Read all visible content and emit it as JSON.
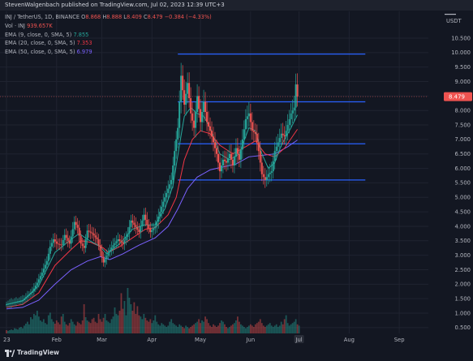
{
  "header": {
    "publisher": "StevenWalgenbach published on TradingView.com, Jul 02, 2023 12:39 UTC+3"
  },
  "legend": {
    "symbol": "INJ / TetherUS, 1D, BINANCE",
    "open_label": "O",
    "open": "8.868",
    "high_label": "H",
    "high": "8.888",
    "low_label": "L",
    "low": "8.409",
    "close_label": "C",
    "close": "8.479",
    "change": "−0.384 (−4.33%)",
    "vol_label": "Vol · INJ",
    "vol": "939.657K",
    "ema9_label": "EMA (9, close, 0, SMA, 5)",
    "ema9": "7.855",
    "ema20_label": "EMA (20, close, 0, SMA, 5)",
    "ema20": "7.353",
    "ema50_label": "EMA (50, close, 0, SMA, 5)",
    "ema50": "6.979"
  },
  "footer": {
    "brand": "TradingView"
  },
  "colors": {
    "up": "#26a69a",
    "down": "#ef5350",
    "level_line": "#2962ff",
    "ema9": "#26a69a",
    "ema20": "#f23645",
    "ema50": "#7b61ff",
    "price_badge": "#ef5350"
  },
  "chart_data": {
    "type": "candlestick",
    "currency_label": "USDT",
    "price_badge": "8.479",
    "y_ticks": [
      "10.500",
      "10.000",
      "9.500",
      "9.000",
      "8.500",
      "8.000",
      "7.500",
      "7.000",
      "6.500",
      "6.000",
      "5.500",
      "5.000",
      "4.500",
      "4.000",
      "3.500",
      "3.000",
      "2.500",
      "2.000",
      "1.500",
      "1.000",
      "0.500"
    ],
    "ylim": [
      0.3,
      11.2
    ],
    "x_ticks": [
      "23",
      "Feb",
      "Mar",
      "Apr",
      "May",
      "Jun",
      "Jul",
      "Aug",
      "Sep"
    ],
    "x_tick_days": [
      0,
      31,
      59,
      90,
      120,
      151,
      181,
      212,
      243
    ],
    "highlighted_x_tick": "Jul",
    "horizontal_levels": [
      {
        "price": 9.95,
        "from_day": 106,
        "to_day": 222
      },
      {
        "price": 8.3,
        "from_day": 106,
        "to_day": 222
      },
      {
        "price": 6.85,
        "from_day": 106,
        "to_day": 222
      },
      {
        "price": 5.6,
        "from_day": 106,
        "to_day": 222
      }
    ],
    "close_series": [
      [
        0,
        1.3
      ],
      [
        5,
        1.38
      ],
      [
        10,
        1.45
      ],
      [
        13,
        1.6
      ],
      [
        16,
        1.75
      ],
      [
        19,
        2.05
      ],
      [
        22,
        2.4
      ],
      [
        25,
        2.8
      ],
      [
        27,
        3.3
      ],
      [
        29,
        3.55
      ],
      [
        31,
        3.4
      ],
      [
        34,
        3.35
      ],
      [
        36,
        3.7
      ],
      [
        39,
        3.4
      ],
      [
        42,
        4.15
      ],
      [
        44,
        3.95
      ],
      [
        46,
        3.4
      ],
      [
        48,
        3.25
      ],
      [
        50,
        3.85
      ],
      [
        53,
        3.75
      ],
      [
        56,
        3.55
      ],
      [
        58,
        3.15
      ],
      [
        60,
        2.75
      ],
      [
        63,
        3.1
      ],
      [
        66,
        3.35
      ],
      [
        69,
        3.55
      ],
      [
        72,
        3.4
      ],
      [
        75,
        3.75
      ],
      [
        77,
        4.2
      ],
      [
        79,
        4.05
      ],
      [
        82,
        3.8
      ],
      [
        85,
        4.4
      ],
      [
        87,
        4.05
      ],
      [
        89,
        3.8
      ],
      [
        92,
        4.0
      ],
      [
        95,
        4.5
      ],
      [
        97,
        4.85
      ],
      [
        100,
        5.3
      ],
      [
        102,
        5.6
      ],
      [
        104,
        6.6
      ],
      [
        106,
        7.4
      ],
      [
        108,
        9.2
      ],
      [
        110,
        8.2
      ],
      [
        112,
        8.95
      ],
      [
        114,
        7.9
      ],
      [
        116,
        7.4
      ],
      [
        118,
        8.5
      ],
      [
        120,
        7.6
      ],
      [
        122,
        8.3
      ],
      [
        124,
        7.6
      ],
      [
        126,
        7.3
      ],
      [
        128,
        6.9
      ],
      [
        130,
        6.5
      ],
      [
        132,
        5.9
      ],
      [
        134,
        6.3
      ],
      [
        136,
        6.2
      ],
      [
        138,
        6.5
      ],
      [
        140,
        6.1
      ],
      [
        142,
        6.7
      ],
      [
        144,
        6.3
      ],
      [
        146,
        7.0
      ],
      [
        148,
        7.7
      ],
      [
        150,
        7.9
      ],
      [
        152,
        7.3
      ],
      [
        154,
        7.2
      ],
      [
        156,
        6.6
      ],
      [
        158,
        5.8
      ],
      [
        160,
        5.6
      ],
      [
        162,
        5.8
      ],
      [
        164,
        5.9
      ],
      [
        166,
        6.6
      ],
      [
        168,
        6.9
      ],
      [
        170,
        7.2
      ],
      [
        172,
        7.1
      ],
      [
        174,
        7.5
      ],
      [
        176,
        7.9
      ],
      [
        178,
        8.1
      ],
      [
        179,
        8.9
      ],
      [
        180,
        8.48
      ]
    ],
    "ema9": [
      [
        0,
        1.3
      ],
      [
        10,
        1.42
      ],
      [
        20,
        1.95
      ],
      [
        30,
        3.1
      ],
      [
        40,
        3.55
      ],
      [
        45,
        3.75
      ],
      [
        50,
        3.55
      ],
      [
        58,
        3.3
      ],
      [
        62,
        3.05
      ],
      [
        70,
        3.4
      ],
      [
        78,
        3.9
      ],
      [
        85,
        4.05
      ],
      [
        92,
        4.05
      ],
      [
        98,
        4.6
      ],
      [
        103,
        5.4
      ],
      [
        107,
        6.8
      ],
      [
        110,
        7.8
      ],
      [
        114,
        8.1
      ],
      [
        118,
        7.9
      ],
      [
        122,
        7.8
      ],
      [
        126,
        7.4
      ],
      [
        132,
        6.5
      ],
      [
        138,
        6.3
      ],
      [
        144,
        6.5
      ],
      [
        150,
        7.4
      ],
      [
        154,
        7.3
      ],
      [
        158,
        6.5
      ],
      [
        162,
        6.0
      ],
      [
        166,
        6.2
      ],
      [
        170,
        6.8
      ],
      [
        176,
        7.4
      ],
      [
        180,
        7.85
      ]
    ],
    "ema20": [
      [
        0,
        1.2
      ],
      [
        10,
        1.3
      ],
      [
        20,
        1.7
      ],
      [
        30,
        2.65
      ],
      [
        40,
        3.2
      ],
      [
        46,
        3.5
      ],
      [
        52,
        3.45
      ],
      [
        60,
        3.25
      ],
      [
        63,
        3.1
      ],
      [
        70,
        3.3
      ],
      [
        78,
        3.6
      ],
      [
        86,
        3.9
      ],
      [
        92,
        3.95
      ],
      [
        100,
        4.4
      ],
      [
        105,
        5.0
      ],
      [
        110,
        6.3
      ],
      [
        115,
        7.0
      ],
      [
        120,
        7.3
      ],
      [
        126,
        7.2
      ],
      [
        132,
        6.8
      ],
      [
        140,
        6.5
      ],
      [
        148,
        6.75
      ],
      [
        154,
        6.95
      ],
      [
        160,
        6.5
      ],
      [
        166,
        6.4
      ],
      [
        172,
        6.7
      ],
      [
        180,
        7.35
      ]
    ],
    "ema50": [
      [
        0,
        1.15
      ],
      [
        10,
        1.2
      ],
      [
        20,
        1.45
      ],
      [
        30,
        2.0
      ],
      [
        40,
        2.5
      ],
      [
        50,
        2.8
      ],
      [
        58,
        2.95
      ],
      [
        64,
        2.85
      ],
      [
        72,
        3.05
      ],
      [
        82,
        3.35
      ],
      [
        92,
        3.6
      ],
      [
        100,
        4.0
      ],
      [
        106,
        4.6
      ],
      [
        112,
        5.3
      ],
      [
        118,
        5.7
      ],
      [
        126,
        5.95
      ],
      [
        134,
        6.05
      ],
      [
        142,
        6.15
      ],
      [
        150,
        6.4
      ],
      [
        158,
        6.45
      ],
      [
        166,
        6.5
      ],
      [
        174,
        6.75
      ],
      [
        180,
        6.98
      ]
    ],
    "volume_relative": [
      0.05,
      0.04,
      0.05,
      0.06,
      0.05,
      0.08,
      0.07,
      0.06,
      0.09,
      0.1,
      0.08,
      0.12,
      0.15,
      0.18,
      0.14,
      0.25,
      0.22,
      0.3,
      0.28,
      0.35,
      0.26,
      0.2,
      0.18,
      0.22,
      0.16,
      0.14,
      0.28,
      0.32,
      0.22,
      0.18,
      0.15,
      0.2,
      0.17,
      0.14,
      0.26,
      0.3,
      0.18,
      0.14,
      0.12,
      0.16,
      0.22,
      0.18,
      0.14,
      0.12,
      0.18,
      0.16,
      0.14,
      0.2,
      0.45,
      0.25,
      0.2,
      0.18,
      0.16,
      0.22,
      0.24,
      0.18,
      0.16,
      0.3,
      0.22,
      0.18,
      0.24,
      0.3,
      0.2,
      0.18,
      0.16,
      0.22,
      0.26,
      0.4,
      0.3,
      0.28,
      0.35,
      0.62,
      0.38,
      0.5,
      0.28,
      0.7,
      0.55,
      0.45,
      0.35,
      0.48,
      0.3,
      0.42,
      0.28,
      0.26,
      0.22,
      0.3,
      0.24,
      0.2,
      0.18,
      0.22,
      0.16,
      0.2,
      0.28,
      0.18,
      0.14,
      0.12,
      0.16,
      0.14,
      0.12,
      0.1,
      0.12,
      0.18,
      0.22,
      0.16,
      0.14,
      0.12,
      0.1,
      0.14,
      0.12,
      0.1,
      0.08,
      0.12,
      0.1,
      0.08,
      0.1,
      0.12,
      0.14,
      0.16,
      0.18,
      0.22,
      0.16,
      0.2,
      0.18,
      0.26,
      0.22,
      0.16,
      0.12,
      0.1,
      0.14,
      0.12,
      0.1,
      0.12,
      0.16,
      0.2,
      0.18,
      0.14,
      0.1,
      0.08,
      0.1,
      0.12,
      0.14,
      0.16,
      0.2,
      0.26,
      0.18,
      0.14,
      0.12,
      0.1,
      0.08,
      0.1,
      0.12,
      0.14,
      0.12,
      0.1,
      0.14,
      0.16,
      0.18,
      0.22,
      0.16,
      0.12,
      0.1,
      0.12,
      0.14,
      0.16,
      0.12,
      0.1,
      0.12,
      0.14,
      0.1,
      0.12,
      0.18,
      0.14,
      0.22,
      0.28,
      0.16,
      0.12,
      0.14,
      0.16,
      0.18,
      0.22,
      0.14,
      0.12
    ]
  }
}
